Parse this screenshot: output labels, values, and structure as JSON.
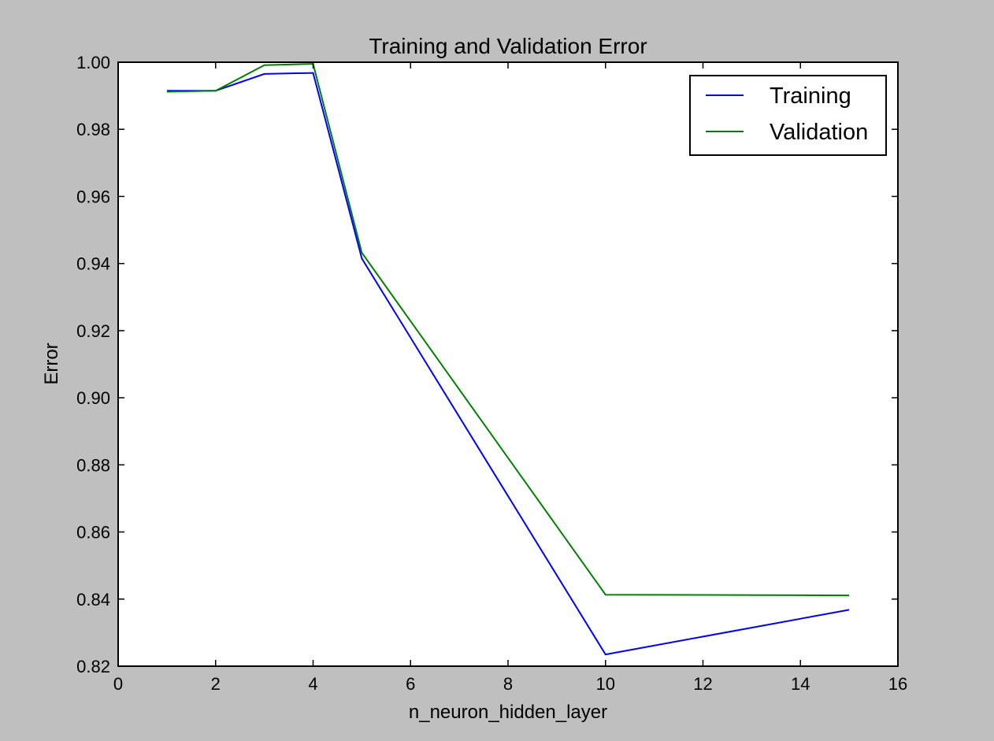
{
  "chart_data": {
    "type": "line",
    "title": "Training and Validation Error",
    "xlabel": "n_neuron_hidden_layer",
    "ylabel": "Error",
    "xlim": [
      0,
      16
    ],
    "ylim": [
      0.82,
      1.0
    ],
    "xticks": [
      "0",
      "2",
      "4",
      "6",
      "8",
      "10",
      "12",
      "14",
      "16"
    ],
    "yticks": [
      "0.82",
      "0.84",
      "0.86",
      "0.88",
      "0.90",
      "0.92",
      "0.94",
      "0.96",
      "0.98",
      "1.00"
    ],
    "grid": false,
    "legend_position": "top-right",
    "x": [
      1,
      2,
      3,
      4,
      5,
      10,
      15
    ],
    "series": [
      {
        "name": "Training",
        "color": "#0000ff",
        "values": [
          0.9915,
          0.9915,
          0.9965,
          0.9968,
          0.9415,
          0.8235,
          0.8368
        ]
      },
      {
        "name": "Validation",
        "color": "#008000",
        "values": [
          0.9912,
          0.9915,
          0.9991,
          0.9995,
          0.9432,
          0.8413,
          0.8411
        ]
      }
    ]
  }
}
